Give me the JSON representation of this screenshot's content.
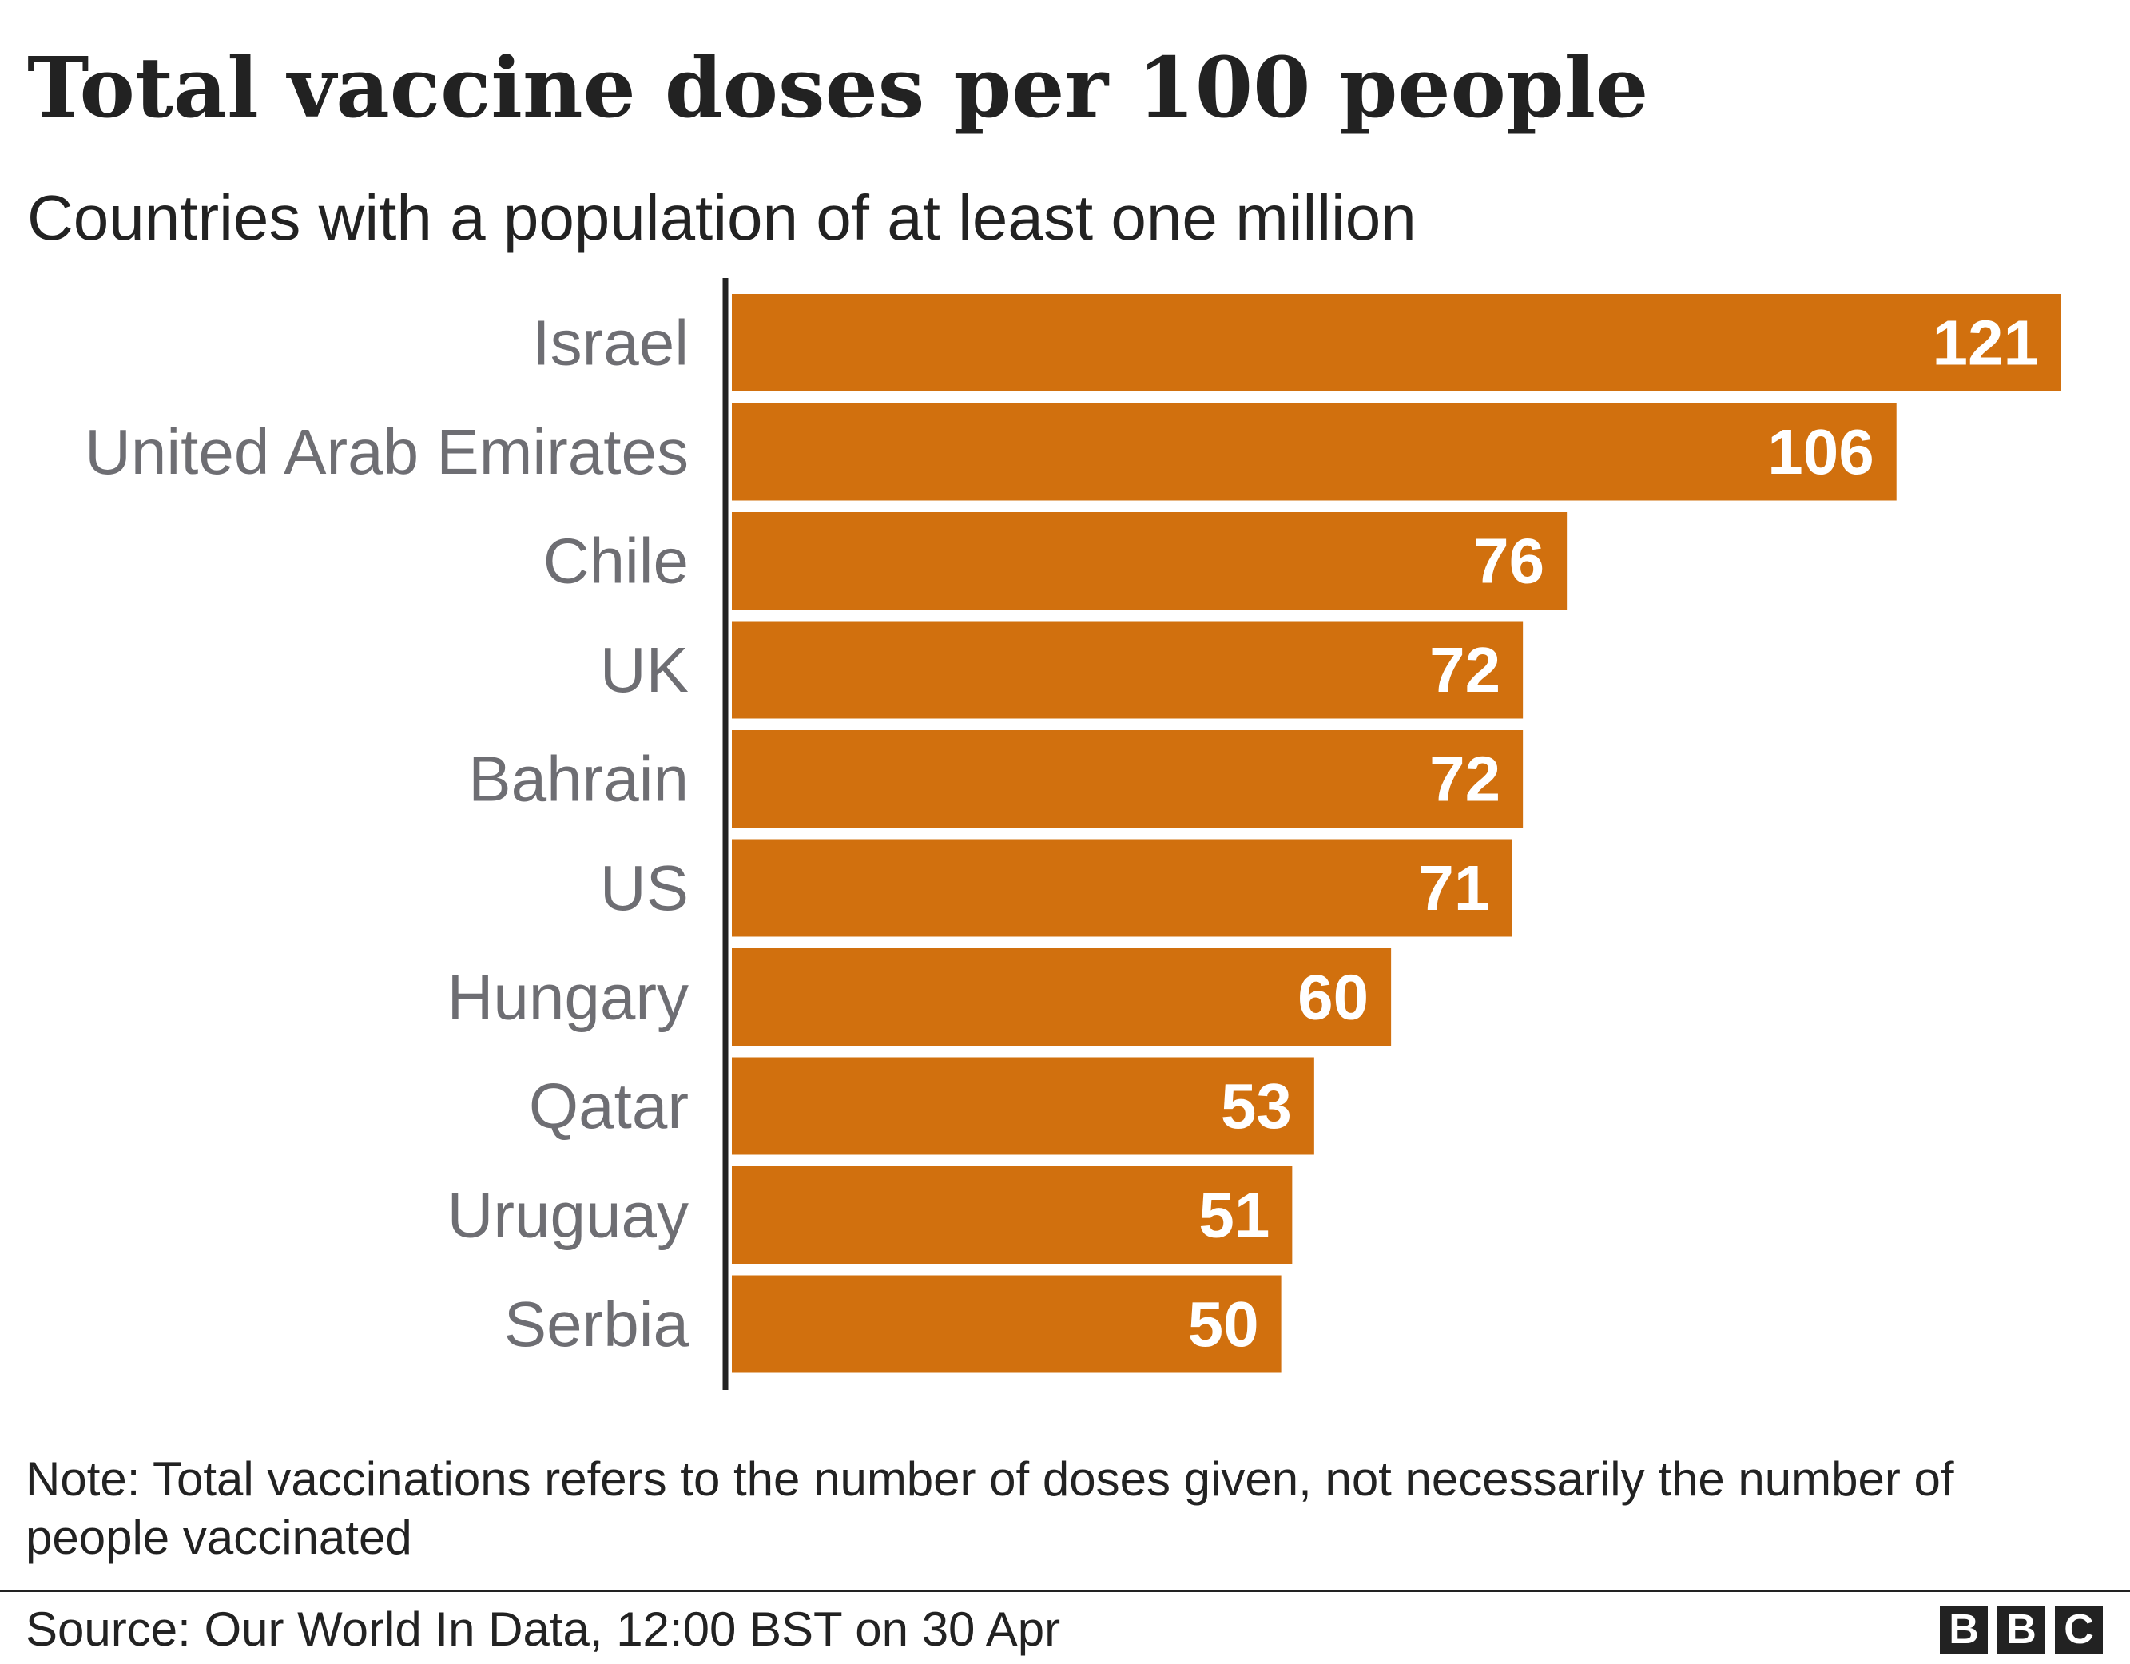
{
  "header": {
    "title": "Total vaccine doses per 100 people",
    "subtitle": "Countries with a population of at least one million"
  },
  "chart_data": {
    "type": "bar",
    "orientation": "horizontal",
    "title": "Total vaccine doses per 100 people",
    "subtitle": "Countries with a population of at least one million",
    "categories": [
      "Israel",
      "United Arab Emirates",
      "Chile",
      "UK",
      "Bahrain",
      "US",
      "Hungary",
      "Qatar",
      "Uruguay",
      "Serbia"
    ],
    "values": [
      121,
      106,
      76,
      72,
      72,
      71,
      60,
      53,
      51,
      50
    ],
    "value_labels": [
      "121",
      "106",
      "76",
      "72",
      "72",
      "71",
      "60",
      "53",
      "51",
      "50"
    ],
    "xlim": [
      0,
      121
    ],
    "grid": false,
    "legend": "none",
    "bar_color": "#d1700e",
    "axis_color": "#222222",
    "label_color": "#6e6e73",
    "value_label_color": "#ffffff"
  },
  "footer": {
    "note": "Note: Total vaccinations refers to the number of doses given, not necessarily the number of people vaccinated",
    "source": "Source: Our World In Data, 12:00 BST on 30 Apr",
    "logo_letters": [
      "B",
      "B",
      "C"
    ]
  }
}
